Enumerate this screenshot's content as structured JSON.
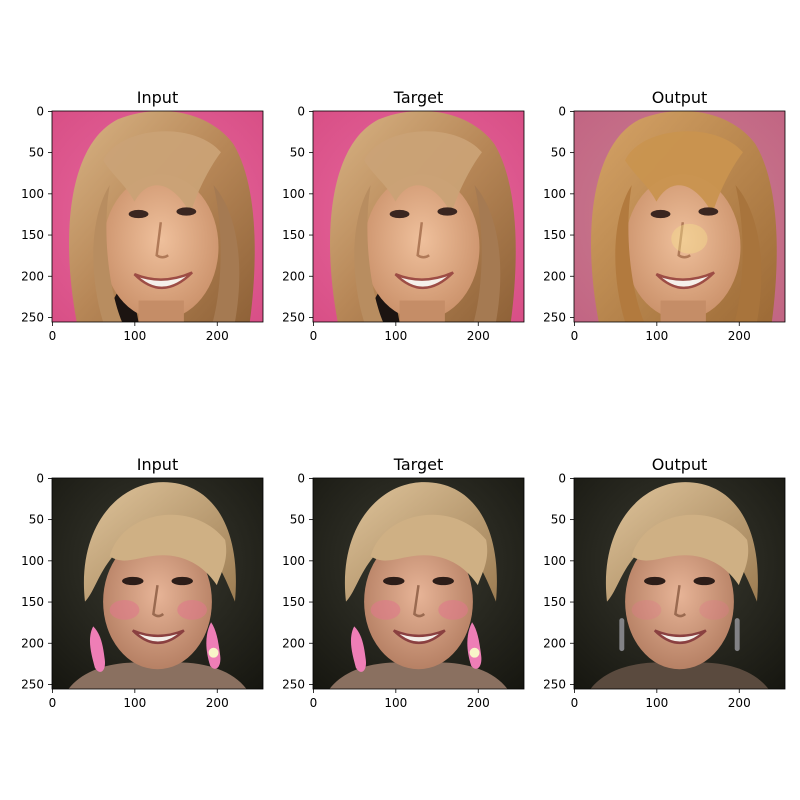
{
  "panels": [
    {
      "title": "Input",
      "subject": "face-a"
    },
    {
      "title": "Target",
      "subject": "face-a"
    },
    {
      "title": "Output",
      "subject": "face-a-reconstruction"
    },
    {
      "title": "Input",
      "subject": "face-b"
    },
    {
      "title": "Target",
      "subject": "face-b"
    },
    {
      "title": "Output",
      "subject": "face-b-reconstruction"
    }
  ],
  "axis": {
    "y_ticks": [
      "0",
      "50",
      "100",
      "150",
      "200",
      "250"
    ],
    "x_ticks": [
      "0",
      "100",
      "200"
    ],
    "xlim": [
      0,
      256
    ],
    "ylim": [
      256,
      0
    ]
  },
  "colors": {
    "pink_background": "#de5a8c",
    "dark_background": "#1f1f1a",
    "blonde_hair": "#c8a071",
    "light_blonde_hair": "#cdb28a",
    "skin": "#d9a27f",
    "earring_pink": "#ee7eb6"
  }
}
